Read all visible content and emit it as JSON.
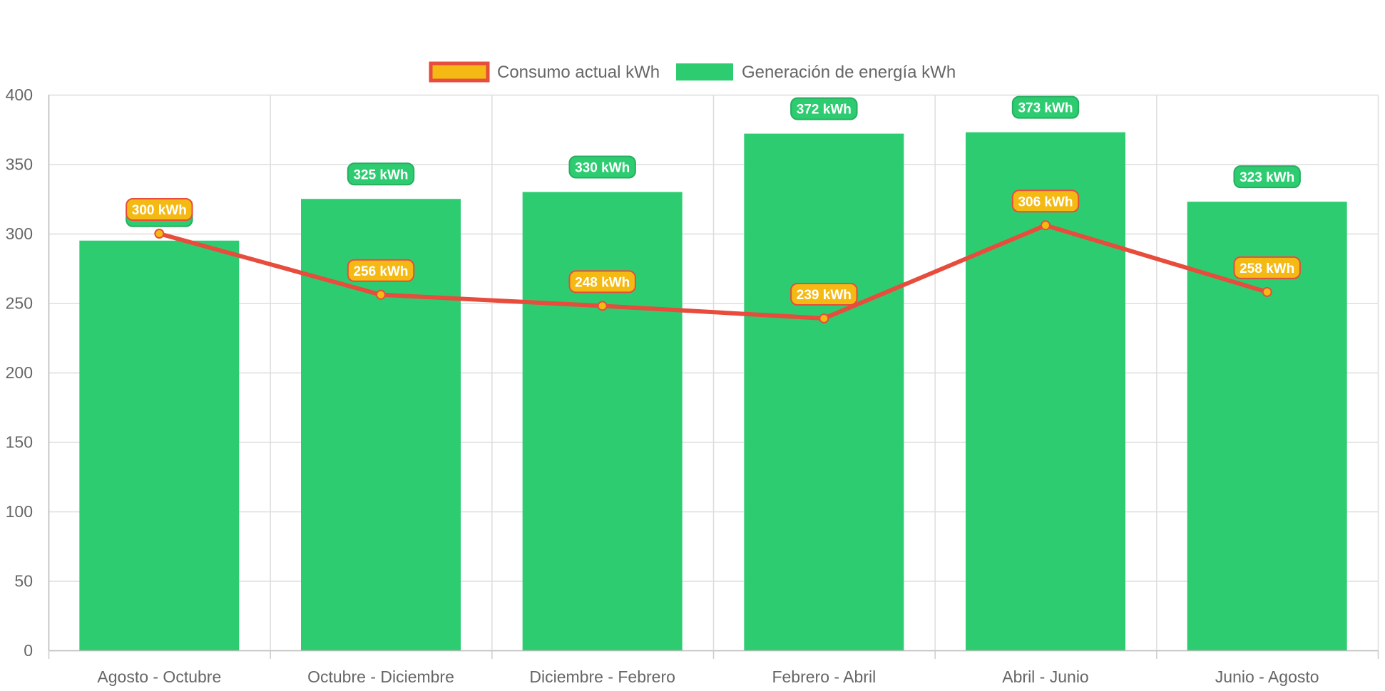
{
  "chart_data": {
    "type": "bar",
    "categories": [
      "Agosto - Octubre",
      "Octubre - Diciembre",
      "Diciembre - Febrero",
      "Febrero - Abril",
      "Abril - Junio",
      "Junio - Agosto"
    ],
    "ylim": [
      0,
      400
    ],
    "yticks": [
      "0",
      "50",
      "100",
      "150",
      "200",
      "250",
      "300",
      "350",
      "400"
    ],
    "grid": true,
    "legend_position": "top",
    "series": [
      {
        "name": "Consumo actual kWh",
        "type": "line",
        "values": [
          300,
          256,
          248,
          239,
          306,
          258
        ],
        "labels": [
          "300 kWh",
          "256 kWh",
          "248 kWh",
          "239 kWh",
          "306 kWh",
          "258 kWh"
        ],
        "color": "#e74c3c",
        "fill": "#f5b914"
      },
      {
        "name": "Generación de energía kWh",
        "type": "bar",
        "values": [
          295,
          325,
          330,
          372,
          373,
          323
        ],
        "labels": [
          "295 kWh",
          "325 kWh",
          "330 kWh",
          "372 kWh",
          "373 kWh",
          "323 kWh"
        ],
        "color": "#2ecc71",
        "label_border": "#27ae60"
      }
    ]
  }
}
